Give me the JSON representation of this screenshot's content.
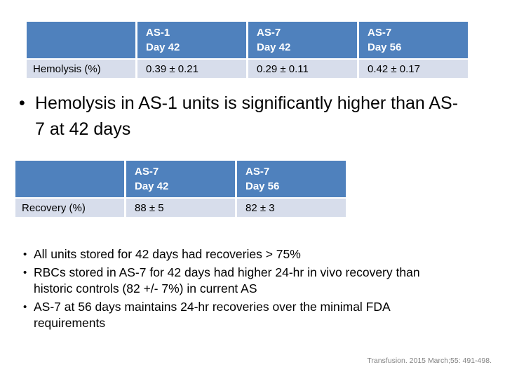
{
  "glyphs": {
    "bullet": "•"
  },
  "colors": {
    "header_blue": "#4f81bd",
    "row_light": "#d7ddeb",
    "citation_gray": "#828282",
    "background": "#ffffff"
  },
  "headline": {
    "text": "Hemolysis in AS-1 units is significantly higher than AS-7 at 42 days"
  },
  "hemolysis_table": {
    "columns": [
      {
        "line1": "AS-1",
        "line2": "Day 42"
      },
      {
        "line1": "AS-7",
        "line2": "Day 42"
      },
      {
        "line1": "AS-7",
        "line2": "Day 56"
      }
    ],
    "row_label": "Hemolysis (%)",
    "values": [
      "0.39 ± 0.21",
      "0.29 ± 0.11",
      "0.42 ± 0.17"
    ]
  },
  "recovery_table": {
    "columns": [
      {
        "line1": "AS-7",
        "line2": "Day 42"
      },
      {
        "line1": "AS-7",
        "line2": "Day 56"
      }
    ],
    "row_label": "Recovery (%)",
    "values": [
      "88 ± 5",
      "82 ± 3"
    ]
  },
  "bullets": [
    "All units stored for 42 days had recoveries > 75%",
    "RBCs stored in AS-7 for 42 days had higher 24-hr in vivo recovery than historic controls (82 +/- 7%) in current AS",
    "AS-7 at 56 days maintains 24-hr recoveries over the minimal FDA requirements"
  ],
  "citation": {
    "text": "Transfusion. 2015 March;55: 491-498."
  }
}
